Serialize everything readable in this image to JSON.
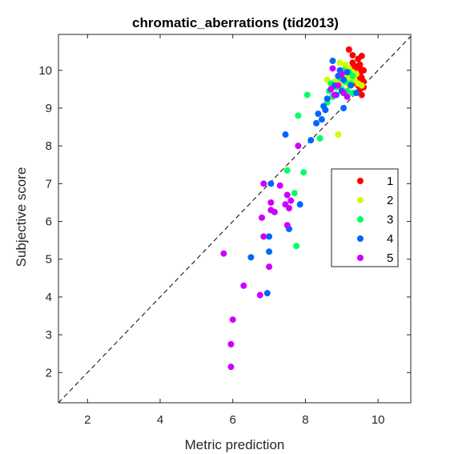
{
  "chart_data": {
    "type": "scatter",
    "title": "chromatic_aberrations (tid2013)",
    "xlabel": "Metric prediction",
    "ylabel": "Subjective score",
    "xlim": [
      1.2,
      10.9
    ],
    "ylim": [
      1.2,
      10.95
    ],
    "xticks": [
      2,
      4,
      6,
      8,
      10
    ],
    "yticks": [
      2,
      3,
      4,
      5,
      6,
      7,
      8,
      9,
      10
    ],
    "grid": false,
    "box": true,
    "diagonal": "dashed y=x reference line",
    "legend": "right, inside plot",
    "series": [
      {
        "name": "1",
        "color": "#ff0000",
        "points": [
          [
            9.2,
            10.55
          ],
          [
            9.3,
            10.4
          ],
          [
            9.45,
            10.3
          ],
          [
            9.55,
            10.38
          ],
          [
            9.3,
            10.2
          ],
          [
            9.4,
            10.1
          ],
          [
            9.5,
            10.15
          ],
          [
            9.25,
            10.05
          ],
          [
            9.6,
            10.0
          ],
          [
            9.35,
            9.95
          ],
          [
            9.5,
            9.9
          ],
          [
            9.55,
            9.8
          ],
          [
            9.45,
            9.75
          ],
          [
            9.6,
            9.7
          ],
          [
            9.4,
            9.65
          ],
          [
            9.55,
            9.6
          ],
          [
            9.6,
            9.55
          ],
          [
            9.5,
            9.5
          ],
          [
            9.55,
            9.35
          ],
          [
            9.4,
            9.9
          ],
          [
            9.3,
            9.7
          ],
          [
            9.45,
            9.6
          ],
          [
            9.2,
            10.0
          ],
          [
            9.35,
            9.8
          ],
          [
            9.5,
            10.05
          ]
        ]
      },
      {
        "name": "2",
        "color": "#ccff00",
        "points": [
          [
            8.95,
            10.2
          ],
          [
            9.1,
            10.15
          ],
          [
            9.2,
            10.05
          ],
          [
            9.3,
            9.95
          ],
          [
            9.4,
            9.9
          ],
          [
            9.0,
            9.95
          ],
          [
            9.15,
            9.85
          ],
          [
            9.25,
            9.8
          ],
          [
            9.35,
            9.75
          ],
          [
            9.45,
            9.65
          ],
          [
            9.55,
            9.6
          ],
          [
            9.1,
            9.7
          ],
          [
            9.2,
            9.6
          ],
          [
            8.6,
            9.75
          ],
          [
            8.8,
            9.7
          ],
          [
            8.95,
            9.65
          ],
          [
            8.9,
            8.3
          ]
        ]
      },
      {
        "name": "3",
        "color": "#00ff66",
        "points": [
          [
            9.05,
            10.0
          ],
          [
            9.2,
            9.95
          ],
          [
            9.3,
            9.85
          ],
          [
            8.95,
            9.8
          ],
          [
            9.1,
            9.7
          ],
          [
            9.25,
            9.65
          ],
          [
            8.7,
            9.65
          ],
          [
            8.85,
            9.55
          ],
          [
            9.0,
            9.5
          ],
          [
            9.15,
            9.45
          ],
          [
            9.3,
            9.4
          ],
          [
            8.65,
            9.45
          ],
          [
            8.75,
            9.3
          ],
          [
            8.6,
            9.15
          ],
          [
            8.05,
            9.35
          ],
          [
            7.8,
            8.8
          ],
          [
            8.4,
            8.2
          ],
          [
            7.5,
            7.35
          ],
          [
            7.95,
            7.3
          ],
          [
            7.7,
            6.75
          ],
          [
            7.75,
            5.35
          ]
        ]
      },
      {
        "name": "4",
        "color": "#0066ff",
        "points": [
          [
            8.75,
            10.25
          ],
          [
            8.95,
            10.0
          ],
          [
            9.15,
            9.95
          ],
          [
            8.9,
            9.85
          ],
          [
            9.05,
            9.75
          ],
          [
            8.8,
            9.6
          ],
          [
            9.0,
            9.45
          ],
          [
            8.85,
            9.35
          ],
          [
            9.25,
            9.6
          ],
          [
            9.4,
            9.4
          ],
          [
            8.6,
            9.25
          ],
          [
            8.5,
            9.05
          ],
          [
            8.35,
            8.85
          ],
          [
            8.55,
            8.95
          ],
          [
            8.45,
            8.7
          ],
          [
            8.3,
            8.6
          ],
          [
            9.05,
            9.0
          ],
          [
            7.45,
            8.3
          ],
          [
            8.15,
            8.15
          ],
          [
            7.05,
            7.0
          ],
          [
            7.85,
            6.45
          ],
          [
            7.55,
            5.8
          ],
          [
            7.0,
            5.6
          ],
          [
            7.0,
            5.2
          ],
          [
            6.5,
            5.05
          ],
          [
            6.95,
            4.1
          ]
        ]
      },
      {
        "name": "5",
        "color": "#cc00ff",
        "points": [
          [
            8.75,
            10.05
          ],
          [
            9.0,
            9.9
          ],
          [
            8.9,
            9.6
          ],
          [
            8.7,
            9.5
          ],
          [
            9.05,
            9.4
          ],
          [
            8.8,
            9.35
          ],
          [
            9.15,
            9.3
          ],
          [
            7.8,
            8.0
          ],
          [
            6.85,
            7.0
          ],
          [
            7.3,
            6.95
          ],
          [
            7.5,
            6.7
          ],
          [
            7.6,
            6.55
          ],
          [
            7.45,
            6.45
          ],
          [
            7.05,
            6.5
          ],
          [
            7.05,
            6.3
          ],
          [
            7.15,
            6.25
          ],
          [
            7.5,
            5.9
          ],
          [
            6.85,
            5.6
          ],
          [
            7.0,
            4.8
          ],
          [
            5.75,
            5.15
          ],
          [
            6.3,
            4.3
          ],
          [
            6.75,
            4.05
          ],
          [
            6.0,
            3.4
          ],
          [
            5.95,
            2.75
          ],
          [
            5.95,
            2.15
          ],
          [
            7.55,
            6.35
          ],
          [
            6.8,
            6.1
          ]
        ]
      }
    ]
  }
}
